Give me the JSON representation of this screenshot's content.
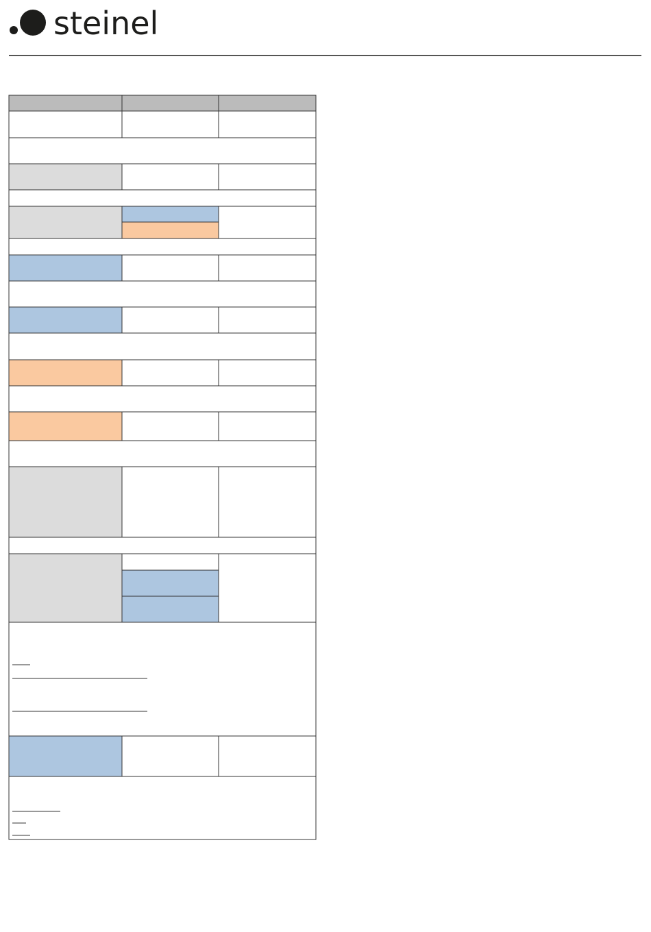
{
  "header": {
    "logo": "steinel"
  }
}
